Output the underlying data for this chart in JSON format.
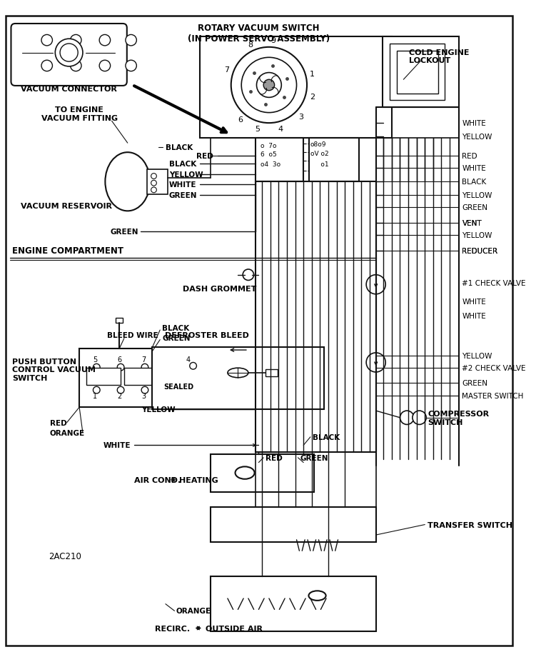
{
  "bg_color": "#ffffff",
  "line_color": "#111111",
  "text_color": "#000000",
  "fig_width": 7.51,
  "fig_height": 9.28,
  "dpi": 100,
  "labels": {
    "rotary_vacuum_switch": "ROTARY VACUUM SWITCH\n(IN POWER SERVO ASSEMBLY)",
    "cold_engine_lockout": "COLD ENGINE\nLOCKOUT",
    "vacuum_connector": "VACUUM CONNECTOR",
    "to_engine_vacuum": "TO ENGINE\nVACUUM FITTING",
    "vacuum_reservoir": "VACUUM RESERVOIR",
    "engine_compartment": "ENGINE COMPARTMENT",
    "dash_grommet": "DASH GROMMET",
    "bleed_wire": "BLEED WIRE",
    "push_button": "PUSH BUTTON\nCONTROL VACUUM\nSWITCH",
    "defroster_bleed": "DEFROSTER BLEED",
    "sealed": "SEALED",
    "air_cond": "AIR COND.",
    "heating": "HEATING",
    "recirc": "RECIRC.",
    "outside_air": "OUTSIDE AIR",
    "transfer_switch": "TRANSFER SWITCH",
    "compressor_switch": "COMPRESSOR\nSWITCH",
    "master_switch": "MASTER SWITCH",
    "check_valve_1": "#1 CHECK VALVE",
    "check_valve_2": "#2 CHECK VALVE",
    "reducer": "REDUCER",
    "vent": "VENT",
    "code": "2AC210",
    "black": "BLACK",
    "red": "RED",
    "yellow": "YELLOW",
    "white": "WHITE",
    "green": "GREEN",
    "orange": "ORANGE"
  }
}
